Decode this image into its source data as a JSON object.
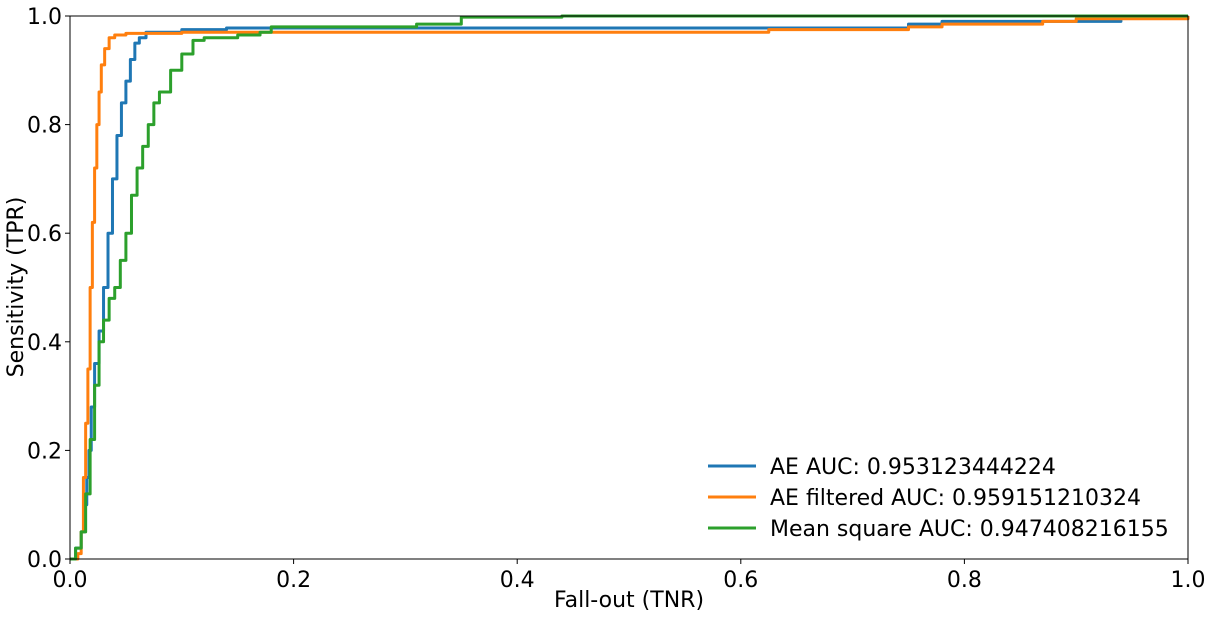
{
  "chart_data": {
    "type": "line",
    "xlabel": "Fall-out (TNR)",
    "ylabel": "Sensitivity (TPR)",
    "xlim": [
      0.0,
      1.0
    ],
    "ylim": [
      0.0,
      1.0
    ],
    "xticks": [
      "0.0",
      "0.2",
      "0.4",
      "0.6",
      "0.8",
      "1.0"
    ],
    "yticks": [
      "0.0",
      "0.2",
      "0.4",
      "0.6",
      "0.8",
      "1.0"
    ],
    "grid": false,
    "legend_position": "lower-right",
    "series": [
      {
        "name": "AE AUC: 0.953123444224",
        "color": "#1f77b4",
        "x": [
          0.0,
          0.005,
          0.01,
          0.013,
          0.015,
          0.017,
          0.019,
          0.022,
          0.026,
          0.03,
          0.034,
          0.038,
          0.042,
          0.046,
          0.05,
          0.054,
          0.058,
          0.062,
          0.068,
          0.08,
          0.1,
          0.14,
          0.3,
          0.5,
          0.75,
          0.78,
          0.92,
          0.94,
          1.0
        ],
        "y": [
          0.0,
          0.02,
          0.05,
          0.1,
          0.15,
          0.2,
          0.28,
          0.36,
          0.42,
          0.5,
          0.6,
          0.7,
          0.78,
          0.84,
          0.88,
          0.92,
          0.95,
          0.96,
          0.97,
          0.97,
          0.975,
          0.978,
          0.978,
          0.978,
          0.985,
          0.99,
          0.99,
          1.0,
          1.0
        ]
      },
      {
        "name": "AE filtered AUC: 0.959151210324",
        "color": "#ff7f0e",
        "x": [
          0.0,
          0.007,
          0.01,
          0.012,
          0.014,
          0.016,
          0.018,
          0.02,
          0.022,
          0.024,
          0.026,
          0.028,
          0.031,
          0.035,
          0.04,
          0.05,
          0.1,
          0.2,
          0.4,
          0.62,
          0.625,
          0.75,
          0.78,
          0.87,
          0.9,
          1.0
        ],
        "y": [
          0.0,
          0.01,
          0.05,
          0.15,
          0.25,
          0.35,
          0.5,
          0.62,
          0.72,
          0.8,
          0.86,
          0.91,
          0.94,
          0.96,
          0.965,
          0.968,
          0.97,
          0.97,
          0.97,
          0.97,
          0.975,
          0.98,
          0.985,
          0.99,
          0.995,
          1.0
        ]
      },
      {
        "name": "Mean square AUC: 0.947408216155",
        "color": "#2ca02c",
        "x": [
          0.0,
          0.005,
          0.01,
          0.014,
          0.018,
          0.022,
          0.026,
          0.03,
          0.035,
          0.04,
          0.045,
          0.05,
          0.055,
          0.06,
          0.065,
          0.07,
          0.075,
          0.08,
          0.09,
          0.1,
          0.11,
          0.12,
          0.15,
          0.17,
          0.18,
          0.3,
          0.31,
          0.35,
          0.44,
          1.0
        ],
        "y": [
          0.0,
          0.02,
          0.05,
          0.12,
          0.22,
          0.32,
          0.4,
          0.44,
          0.48,
          0.5,
          0.55,
          0.6,
          0.67,
          0.72,
          0.76,
          0.8,
          0.84,
          0.86,
          0.9,
          0.93,
          0.955,
          0.96,
          0.965,
          0.97,
          0.98,
          0.98,
          0.985,
          0.998,
          1.0,
          1.0
        ]
      }
    ]
  }
}
